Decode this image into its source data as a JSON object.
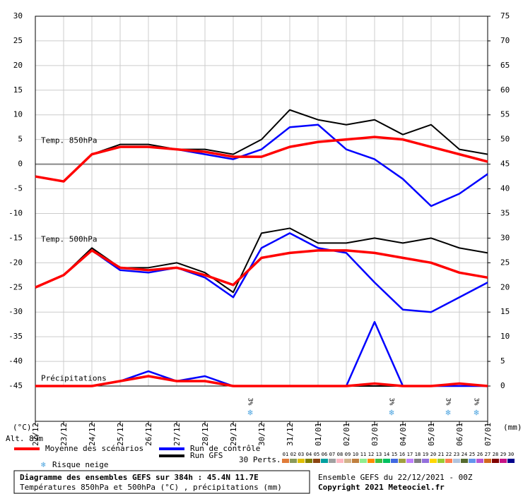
{
  "chart_data": {
    "type": "line",
    "categories": [
      "22/12",
      "23/12",
      "24/12",
      "25/12",
      "26/12",
      "27/12",
      "28/12",
      "29/12",
      "30/12",
      "31/12",
      "01/01",
      "02/01",
      "03/01",
      "04/01",
      "05/01",
      "06/01",
      "07/01"
    ],
    "ylim": [
      -45,
      30
    ],
    "yticks": [
      -45,
      -40,
      -35,
      -30,
      -25,
      -20,
      -15,
      -10,
      -5,
      0,
      5,
      10,
      15,
      20,
      25,
      30
    ],
    "y2lim": [
      0,
      75
    ],
    "y2ticks": [
      0,
      5,
      10,
      15,
      20,
      25,
      30,
      35,
      40,
      45,
      50,
      55,
      60,
      65,
      70,
      75
    ],
    "y_unit": "(°C)",
    "y2_unit": "(mm)",
    "grid": true,
    "annotations": {
      "t850": "Temp. 850hPa",
      "t500": "Temp. 500hPa",
      "precip": "Précipitations",
      "altitude": "Alt. 89m"
    },
    "series": [
      {
        "name": "Moyenne des scénarios",
        "color": "#ff0000",
        "t850": [
          -2.5,
          -3.5,
          2,
          3.5,
          3.5,
          3,
          2.5,
          1.5,
          1.5,
          3.5,
          4.5,
          5,
          5.5,
          5,
          3.5,
          2,
          0.5
        ],
        "t500": [
          -25,
          -22.5,
          -17.5,
          -21,
          -21.5,
          -21,
          -22.5,
          -24.5,
          -19,
          -18,
          -17.5,
          -17.5,
          -18,
          -19,
          -20,
          -22,
          -23
        ],
        "precip": [
          0,
          0,
          0,
          1,
          2,
          1,
          1,
          0,
          0,
          0,
          0,
          0,
          0.5,
          0,
          0,
          0.5,
          0
        ]
      },
      {
        "name": "Run de contrôle",
        "color": "#0000ff",
        "t850": [
          -2.5,
          -3.5,
          2,
          3.5,
          3.5,
          3,
          2,
          1,
          3,
          7.5,
          8,
          3,
          1,
          -3,
          -8.5,
          -6,
          -2
        ],
        "t500": [
          -25,
          -22.5,
          -17.5,
          -21.5,
          -22,
          -21,
          -23,
          -27,
          -17,
          -14,
          -17,
          -18,
          -24,
          -29.5,
          -30,
          -27,
          -24
        ],
        "precip": [
          0,
          0,
          0,
          1,
          3,
          1,
          2,
          0,
          0,
          0,
          0,
          0,
          13,
          0,
          0,
          0,
          0
        ]
      },
      {
        "name": "Run GFS",
        "color": "#000000",
        "t850": [
          -2.5,
          -3.5,
          2,
          4,
          4,
          3,
          3,
          2,
          5,
          11,
          9,
          8,
          9,
          6,
          8,
          3,
          2
        ],
        "t500": [
          -25,
          -22.5,
          -17,
          -21,
          -21,
          -20,
          -22,
          -26,
          -14,
          -13,
          -16,
          -16,
          -15,
          -16,
          -15,
          -17,
          -18
        ],
        "precip": [
          0,
          0,
          0,
          1,
          3,
          1,
          1,
          0,
          0,
          0,
          0,
          0,
          0,
          0,
          0,
          0,
          0
        ]
      }
    ],
    "snow_label": "Risque neige",
    "snow_risk": [
      {
        "x": "29/12",
        "label": "3%"
      },
      {
        "x": "03/01",
        "label": "3%"
      },
      {
        "x": "05/01",
        "label": "3%"
      },
      {
        "x": "06/01",
        "label": "3%"
      }
    ],
    "perturbations_label": "30 Perts.",
    "perturbations": [
      {
        "name": "01",
        "color": "#e07b39"
      },
      {
        "name": "02",
        "color": "#8a9a5b"
      },
      {
        "name": "03",
        "color": "#e0c000"
      },
      {
        "name": "04",
        "color": "#808000"
      },
      {
        "name": "05",
        "color": "#8b4513"
      },
      {
        "name": "06",
        "color": "#00a0a0"
      },
      {
        "name": "07",
        "color": "#a0a0a0"
      },
      {
        "name": "08",
        "color": "#ffb6c1"
      },
      {
        "name": "09",
        "color": "#d2b48c"
      },
      {
        "name": "10",
        "color": "#c08040"
      },
      {
        "name": "11",
        "color": "#90ee90"
      },
      {
        "name": "12",
        "color": "#ff8c00"
      },
      {
        "name": "13",
        "color": "#40c040"
      },
      {
        "name": "14",
        "color": "#00c060"
      },
      {
        "name": "15",
        "color": "#4169e1"
      },
      {
        "name": "16",
        "color": "#a0a040"
      },
      {
        "name": "17",
        "color": "#c080ff"
      },
      {
        "name": "18",
        "color": "#808080"
      },
      {
        "name": "19",
        "color": "#9370db"
      },
      {
        "name": "20",
        "color": "#ffd700"
      },
      {
        "name": "21",
        "color": "#9acd32"
      },
      {
        "name": "22",
        "color": "#ff7f50"
      },
      {
        "name": "23",
        "color": "#b0c4de"
      },
      {
        "name": "24",
        "color": "#556b2f"
      },
      {
        "name": "25",
        "color": "#6495ed"
      },
      {
        "name": "26",
        "color": "#ba55d3"
      },
      {
        "name": "27",
        "color": "#d2691e"
      },
      {
        "name": "28",
        "color": "#800000"
      },
      {
        "name": "29",
        "color": "#c71585"
      },
      {
        "name": "30",
        "color": "#00008b"
      }
    ],
    "footer": {
      "title": "Diagramme des ensembles GEFS sur 384h : 45.4N 11.7E",
      "subtitle": "Températures 850hPa et 500hPa (°C) , précipitations (mm)",
      "run": "Ensemble GEFS du 22/12/2021 - 00Z",
      "copyright": "Copyright 2021 Meteociel.fr"
    }
  }
}
